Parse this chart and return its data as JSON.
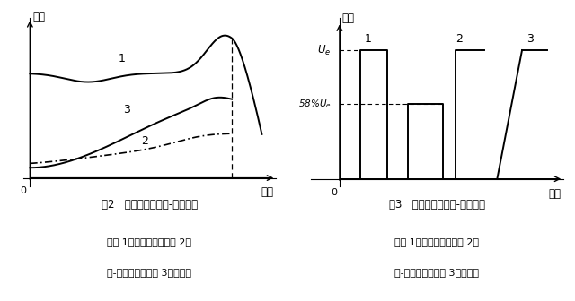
{
  "fig2_title": "图2   电动机启动转矩-转速曲线",
  "fig2_cap1": "曲线 1：直接启动；曲线 2：",
  "fig2_cap2": "星-三角启动；曲线 3：软启动",
  "fig2_xlabel": "转速",
  "fig2_ylabel": "转矩",
  "fig3_title": "图3   电动机启动电压-转速曲线",
  "fig3_cap1": "曲线 1：直接启动；曲线 2：",
  "fig3_cap2": "星-三角启动；曲线 3：软启动",
  "fig3_xlabel": "转速",
  "fig3_ylabel": "电压",
  "bg_color": "#ffffff",
  "line_color": "#000000"
}
